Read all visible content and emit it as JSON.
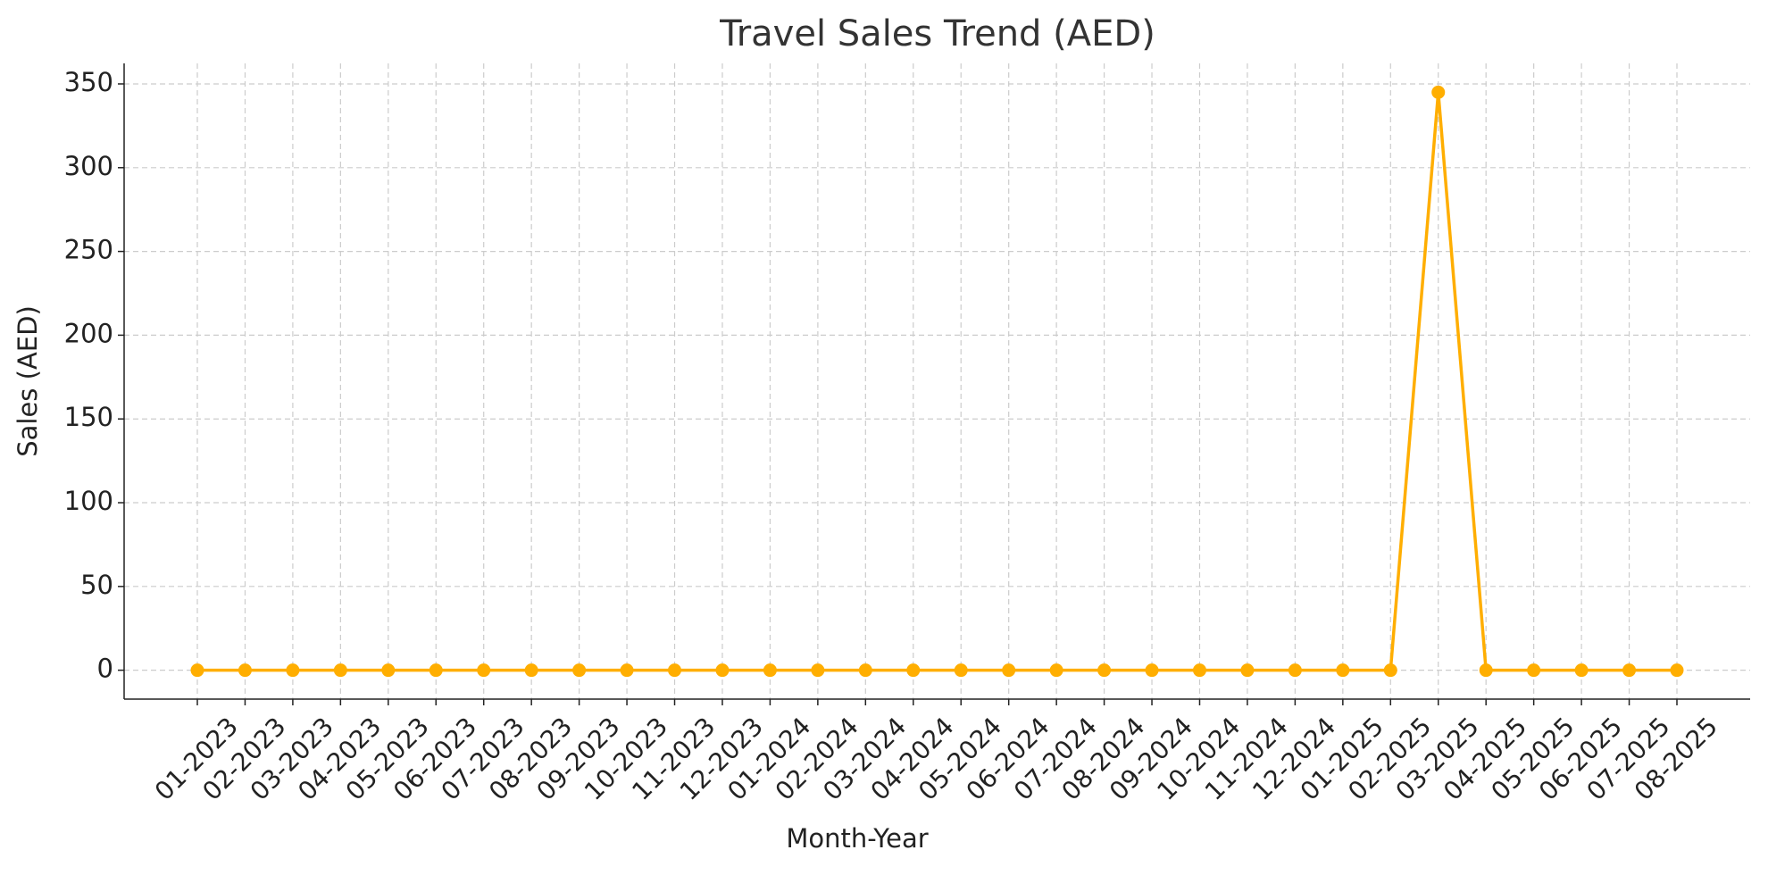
{
  "chart_data": {
    "type": "line",
    "title": "Travel Sales Trend (AED)",
    "x_label": "Month-Year",
    "y_label": "Sales (AED)",
    "categories": [
      "01-2023",
      "02-2023",
      "03-2023",
      "04-2023",
      "05-2023",
      "06-2023",
      "07-2023",
      "08-2023",
      "09-2023",
      "10-2023",
      "11-2023",
      "12-2023",
      "01-2024",
      "02-2024",
      "03-2024",
      "04-2024",
      "05-2024",
      "06-2024",
      "07-2024",
      "08-2024",
      "09-2024",
      "10-2024",
      "11-2024",
      "12-2024",
      "01-2025",
      "02-2025",
      "03-2025",
      "04-2025",
      "05-2025",
      "06-2025",
      "07-2025",
      "08-2025"
    ],
    "values": [
      0,
      0,
      0,
      0,
      0,
      0,
      0,
      0,
      0,
      0,
      0,
      0,
      0,
      0,
      0,
      0,
      0,
      0,
      0,
      0,
      0,
      0,
      0,
      0,
      0,
      0,
      345,
      0,
      0,
      0,
      0,
      0
    ],
    "color": "#ffae00",
    "ylim": [
      -17.25,
      362.25
    ],
    "yticks": [
      0,
      50,
      100,
      150,
      200,
      250,
      300,
      350
    ],
    "grid": true
  }
}
